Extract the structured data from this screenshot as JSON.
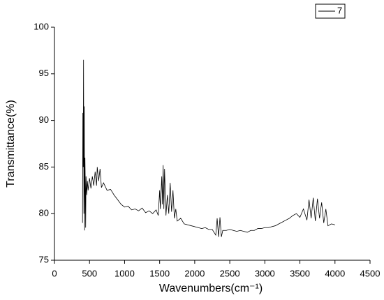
{
  "chart_data": {
    "type": "line",
    "x_label": "Wavenumbers(cm⁻¹)",
    "y_label": "Transmittance(%)",
    "xlim": [
      0,
      4500
    ],
    "xticks": [
      0,
      500,
      1000,
      1500,
      2000,
      2500,
      3000,
      3500,
      4000,
      4500
    ],
    "ylim": [
      75,
      100
    ],
    "yticks": [
      75,
      80,
      85,
      90,
      95,
      100
    ],
    "legend": "top-right",
    "x": [
      400,
      405,
      410,
      415,
      420,
      425,
      430,
      435,
      440,
      445,
      450,
      460,
      470,
      480,
      500,
      520,
      540,
      560,
      580,
      600,
      610,
      630,
      650,
      670,
      700,
      750,
      800,
      850,
      900,
      950,
      1000,
      1050,
      1100,
      1150,
      1200,
      1250,
      1300,
      1350,
      1400,
      1450,
      1480,
      1500,
      1510,
      1530,
      1540,
      1550,
      1560,
      1570,
      1590,
      1610,
      1630,
      1650,
      1670,
      1690,
      1710,
      1730,
      1750,
      1800,
      1850,
      1900,
      1950,
      2000,
      2050,
      2100,
      2150,
      2200,
      2250,
      2300,
      2320,
      2340,
      2360,
      2380,
      2400,
      2450,
      2500,
      2550,
      2600,
      2650,
      2700,
      2750,
      2800,
      2850,
      2900,
      2950,
      3000,
      3050,
      3100,
      3150,
      3200,
      3250,
      3300,
      3350,
      3400,
      3450,
      3500,
      3550,
      3600,
      3630,
      3660,
      3690,
      3720,
      3750,
      3780,
      3810,
      3840,
      3870,
      3900,
      3950,
      4000
    ],
    "series": [
      {
        "name": "7",
        "color": "#000000",
        "values": [
          79.0,
          90.8,
          85,
          96.5,
          80,
          91.5,
          78.2,
          86,
          83,
          78.5,
          84,
          82,
          83.5,
          82.5,
          83.8,
          82.7,
          84,
          83,
          84.5,
          83,
          85,
          83.5,
          84.8,
          82.8,
          83.3,
          82.5,
          82.6,
          82,
          81.5,
          81,
          80.7,
          80.8,
          80.4,
          80.5,
          80.3,
          80.6,
          80.1,
          80.3,
          80.0,
          80.4,
          79.8,
          82.5,
          80.5,
          84,
          81,
          85.2,
          80.5,
          84.8,
          79.8,
          82,
          80,
          83.3,
          80.2,
          82.5,
          79.5,
          80.5,
          79.2,
          79.5,
          78.9,
          78.8,
          78.7,
          78.6,
          78.5,
          78.4,
          78.5,
          78.3,
          78.3,
          77.7,
          79.5,
          77.5,
          79.6,
          77.5,
          78.2,
          78.2,
          78.3,
          78.2,
          78.1,
          78.2,
          78.1,
          78.0,
          78.2,
          78.2,
          78.4,
          78.4,
          78.5,
          78.5,
          78.6,
          78.7,
          78.9,
          79.1,
          79.3,
          79.5,
          79.8,
          80.0,
          79.6,
          80.5,
          79.3,
          81.5,
          79.5,
          81.7,
          79.2,
          81.6,
          79.5,
          81.2,
          79.0,
          80.5,
          78.7,
          78.9,
          78.8
        ]
      }
    ]
  }
}
